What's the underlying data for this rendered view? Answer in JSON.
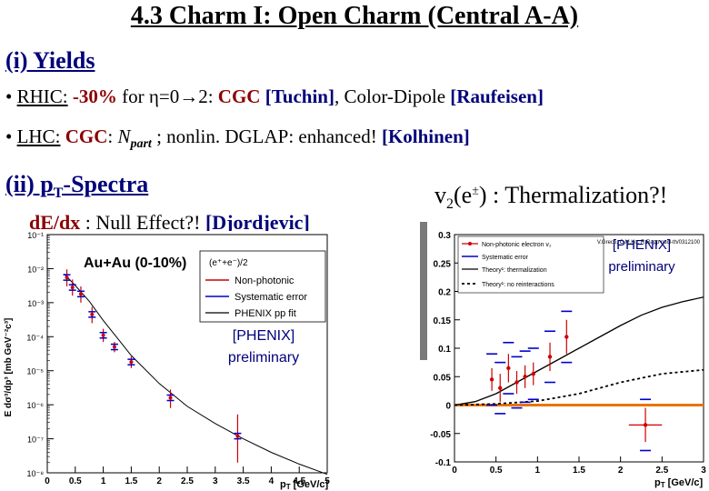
{
  "slide": {
    "title": "4.3 Charm I: Open Charm (Central A-A)",
    "sec1": "(i)  Yields",
    "b1": {
      "rhic": "RHIC:",
      "pct": " -30% ",
      "for": "for ",
      "eta": "η",
      "rng1": "=0",
      "arrow": "→",
      "rng2": "2:",
      "cgc": " CGC ",
      "tuchin": "[Tuchin]",
      "cd": ", Color-Dipole ",
      "raufeisen": "[Raufeisen]"
    },
    "b2": {
      "lhc": "LHC:",
      "cgc": "CGC",
      "colon": ": ",
      "N": "N",
      "part": "part",
      "semi": " ;   nonlin. DGLAP: enhanced!  ",
      "kolhinen": "[Kolhinen]"
    },
    "sec2": "(ii) p",
    "sec2_sub": "T",
    "sec2_rest": "-Spectra",
    "v2_title": "v",
    "v2_sub": "2",
    "v2_rest": "(e",
    "v2_sup": "±",
    "v2_end": ") : Thermalization?!",
    "dedx_a": "d",
    "dedx_b": "E/dx",
    "dedx_c": " : Null Effect?! ",
    "djordjevic": "[Djordjevic]"
  },
  "left_plot": {
    "frame_label": "Au+Au (0-10%)",
    "ylabel": "E dσ³/dp³ [mb GeV⁻²c³]",
    "xlabel": "p",
    "xlabel_sub": "T",
    "xlabel_unit": " [GeV/c]",
    "legend_header": "(e⁺+e⁻)/2",
    "legend": [
      "Non-photonic",
      "Systematic error",
      "PHENIX pp fit"
    ],
    "note1": "[PHENIX]",
    "note2": "preliminary",
    "colors": {
      "data": "#cc0000",
      "syst": "#0000cc",
      "fit": "#000000"
    }
  },
  "right_plot": {
    "xlabel": "p",
    "xlabel_sub": "T",
    "xlabel_unit": " [GeV/c]",
    "citation": "V.Greco, C.M.Ko, R.Rapp nucl-th/0312100",
    "legend": [
      "Non-photonic electron v₂",
      "Systematic error",
      "Theory¹: thermalization",
      "Theory¹: no reinteractions"
    ],
    "note1": "[PHENIX]",
    "note2": "preliminary",
    "colors": {
      "data": "#cc0000",
      "syst": "#0000cc",
      "zero_line": "#e87400",
      "theory": "#000000"
    }
  },
  "chart_data": [
    {
      "type": "scatter",
      "title": "Au+Au (0-10%)",
      "xlabel": "pT [GeV/c]",
      "ylabel": "E dσ³/dp³ [mb GeV⁻²c³]",
      "xlim": [
        0,
        5
      ],
      "ylim": [
        1e-08,
        0.1
      ],
      "yscale": "log",
      "x_ticks": [
        "0",
        "0.5",
        "1",
        "1.5",
        "2",
        "2.5",
        "3",
        "3.5",
        "4",
        "4.5",
        "5"
      ],
      "y_ticks": [
        "10⁻⁸",
        "10⁻⁷",
        "10⁻⁶",
        "10⁻⁵",
        "10⁻⁴",
        "10⁻³",
        "10⁻²",
        "10⁻¹"
      ],
      "series": [
        {
          "name": "Non-photonic",
          "x": [
            0.35,
            0.45,
            0.6,
            0.8,
            1.0,
            1.2,
            1.5,
            2.2,
            3.4
          ],
          "y": [
            0.0055,
            0.0028,
            0.0018,
            0.00045,
            0.00011,
            5e-05,
            1.8e-05,
            1.6e-06,
            1.2e-07
          ],
          "yerr_up": [
            0.004,
            0.002,
            0.0012,
            0.0003,
            6e-05,
            2e-05,
            8e-06,
            1.2e-06,
            4e-07
          ],
          "yerr_dn": [
            0.0025,
            0.0012,
            0.0008,
            0.0002,
            4e-05,
            1.5e-05,
            6e-06,
            8e-07,
            1e-07
          ]
        },
        {
          "name": "PHENIX pp fit",
          "x": [
            0.3,
            0.5,
            0.75,
            1.0,
            1.5,
            2.0,
            2.5,
            3.0,
            3.5,
            4.0,
            4.5,
            5.0
          ],
          "y": [
            0.007,
            0.0032,
            0.0011,
            0.0003,
            2.8e-05,
            4.2e-06,
            9e-07,
            2.8e-07,
            1e-07,
            4e-08,
            1.8e-08,
            9e-09
          ]
        }
      ]
    },
    {
      "type": "scatter",
      "xlabel": "pT [GeV/c]",
      "xlim": [
        0,
        3
      ],
      "ylim": [
        -0.1,
        0.3
      ],
      "x_ticks": [
        "0",
        "0.5",
        "1",
        "1.5",
        "2",
        "2.5",
        "3"
      ],
      "y_ticks": [
        "-0.1",
        "-0.05",
        "0",
        "0.05",
        "0.1",
        "0.15",
        "0.2",
        "0.25",
        "0.3"
      ],
      "series": [
        {
          "name": "Non-photonic electron v₂",
          "x": [
            0.45,
            0.55,
            0.65,
            0.75,
            0.85,
            0.95,
            1.15,
            1.35,
            2.3
          ],
          "y": [
            0.045,
            0.03,
            0.065,
            0.04,
            0.05,
            0.055,
            0.085,
            0.12,
            -0.035
          ],
          "yerr": [
            0.02,
            0.025,
            0.025,
            0.02,
            0.02,
            0.02,
            0.025,
            0.03,
            0.03
          ],
          "xerr": [
            0,
            0,
            0,
            0,
            0,
            0,
            0,
            0,
            0.2
          ]
        },
        {
          "name": "Theory¹: thermalization",
          "x": [
            0,
            0.25,
            0.5,
            0.75,
            1.0,
            1.25,
            1.5,
            1.75,
            2.0,
            2.25,
            2.5,
            2.75,
            3.0
          ],
          "y": [
            0,
            0.006,
            0.02,
            0.04,
            0.06,
            0.08,
            0.1,
            0.12,
            0.14,
            0.158,
            0.172,
            0.182,
            0.19
          ]
        },
        {
          "name": "Theory¹: no reinteractions",
          "x": [
            0,
            0.5,
            1.0,
            1.5,
            2.0,
            2.5,
            3.0
          ],
          "y": [
            0,
            0.002,
            0.007,
            0.02,
            0.04,
            0.055,
            0.062
          ]
        }
      ],
      "reference_line": 0
    }
  ]
}
